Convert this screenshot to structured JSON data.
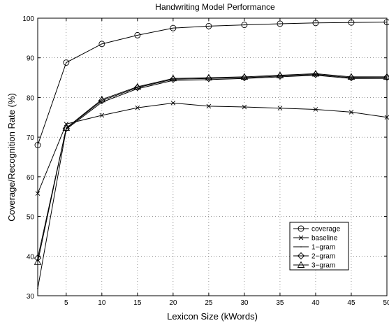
{
  "chart_data": {
    "type": "line",
    "title": "Handwriting Model Performance",
    "xlabel": "Lexicon Size (kWords)",
    "ylabel": "Coverage/Recognition Rate (%)",
    "xlim": [
      1,
      50
    ],
    "ylim": [
      30,
      100
    ],
    "xticks": [
      5,
      10,
      15,
      20,
      25,
      30,
      35,
      40,
      45,
      50
    ],
    "yticks": [
      30,
      40,
      50,
      60,
      70,
      80,
      90,
      100
    ],
    "grid": true,
    "legend_position": "lower-right",
    "x": [
      1,
      5,
      10,
      15,
      20,
      25,
      30,
      35,
      40,
      45,
      50
    ],
    "series": [
      {
        "name": "coverage",
        "marker": "circle",
        "values": [
          68,
          88.8,
          93.5,
          95.7,
          97.5,
          98.0,
          98.3,
          98.6,
          98.8,
          98.9,
          99.0
        ]
      },
      {
        "name": "baseline",
        "marker": "x",
        "values": [
          55.8,
          73.3,
          75.5,
          77.4,
          78.6,
          77.8,
          77.6,
          77.3,
          77.0,
          76.3,
          75.0
        ]
      },
      {
        "name": "1−gram",
        "marker": "point",
        "values": [
          31.8,
          72.0,
          78.8,
          82.2,
          84.3,
          84.5,
          84.8,
          85.2,
          85.6,
          84.8,
          84.8
        ]
      },
      {
        "name": "2−gram",
        "marker": "diamond",
        "values": [
          39.5,
          72.2,
          79.2,
          82.5,
          84.6,
          84.8,
          85.0,
          85.4,
          85.8,
          85.0,
          85.1
        ]
      },
      {
        "name": "3−gram",
        "marker": "triangle",
        "values": [
          38.5,
          72.3,
          79.5,
          82.7,
          84.8,
          85.0,
          85.2,
          85.6,
          86.0,
          85.2,
          85.2
        ]
      }
    ]
  }
}
